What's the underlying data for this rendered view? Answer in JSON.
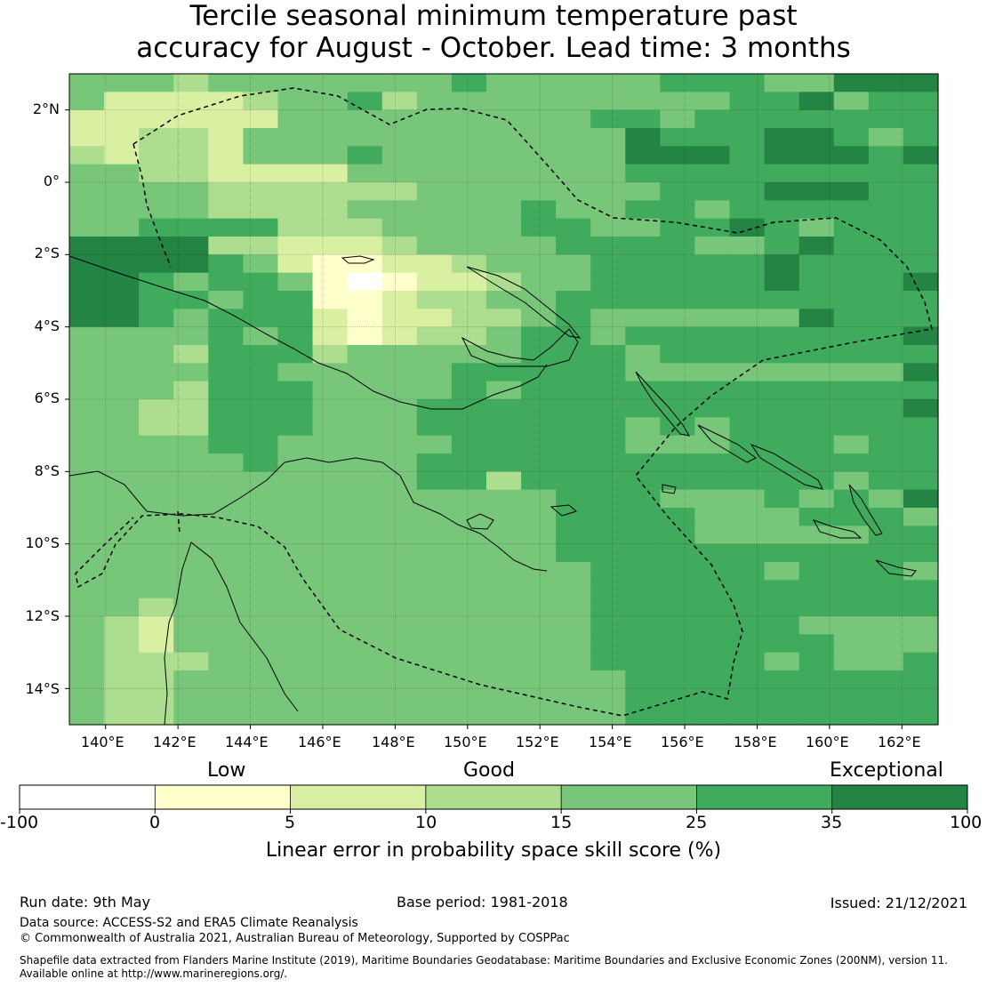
{
  "title": {
    "line1": "Tercile seasonal minimum temperature past",
    "line2": "accuracy for August - October. Lead time: 3 months"
  },
  "map": {
    "lon_labels": [
      "140°E",
      "142°E",
      "144°E",
      "146°E",
      "148°E",
      "150°E",
      "152°E",
      "154°E",
      "156°E",
      "158°E",
      "160°E",
      "162°E"
    ],
    "lat_labels": [
      "2°N",
      "0°",
      "2°S",
      "4°S",
      "6°S",
      "8°S",
      "10°S",
      "12°S",
      "14°S"
    ],
    "lon_range": [
      139,
      163
    ],
    "lat_range": [
      -15,
      3
    ],
    "grid": true,
    "grid_rows": [
      "4443444444454444455544666",
      "4222234453444444444556455",
      "2222224444444445545555555",
      "2233244444444444655566545",
      "3233244454444444666566656",
      "4433222244444444555555555",
      "4444333333444444455566655",
      "4444333344444544554555555",
      "4455553334444554455654555",
      "6666332223444455554456555",
      "6666542112234445555565555",
      "6654554101223445555565556",
      "6655455112334455555555555",
      "6654555212233454444446555",
      "4444545212334554555555556",
      "4443555344444555455555555",
      "4444554444455555444444446",
      "4443555444454555555555555",
      "4433555444555555555555556",
      "4433555444555555454555555",
      "4444554444455555444555455",
      "4444454444555555555555555",
      "4444444444553555555555455",
      "4444444444444455544454546",
      "4444444444444455554445554",
      "4444444444444455554444455",
      "4444444444444455555555555",
      "4444444444444445555545554",
      "4444444444444445555555555",
      "4434444444444445555555555",
      "4324444444444445555554444",
      "4324444444444445555555444",
      "4333444444444445555545445",
      "4334444444444444555555555",
      "4334444444444444555555555",
      "4334444444444444555555555"
    ]
  },
  "legend": {
    "categories": [
      "Low",
      "Good",
      "Exceptional"
    ],
    "ticks": [
      "-100",
      "0",
      "5",
      "10",
      "15",
      "25",
      "35",
      "100"
    ],
    "colors": [
      "#ffffff",
      "#ffffcc",
      "#d9f0a3",
      "#addd8e",
      "#78c679",
      "#41ab5d",
      "#238443"
    ],
    "title": "Linear error in probability space skill score (%)"
  },
  "footer": {
    "run_date": "Run date: 9th May",
    "base_period": "Base period: 1981-2018",
    "issued": "Issued: 21/12/2021",
    "data_source": "Data source: ACCESS-S2 and ERA5 Climate Reanalysis",
    "copyright": "© Commonwealth of Australia 2021, Australian Bureau of Meteorology, Supported by COSPPac",
    "shapefile_line1": "Shapefile data extracted from Flanders Marine Institute (2019), Maritime Boundaries Geodatabase: Maritime Boundaries and Exclusive Economic Zones (200NM), version 11.",
    "shapefile_line2": "Available online at http://www.marineregions.org/."
  }
}
